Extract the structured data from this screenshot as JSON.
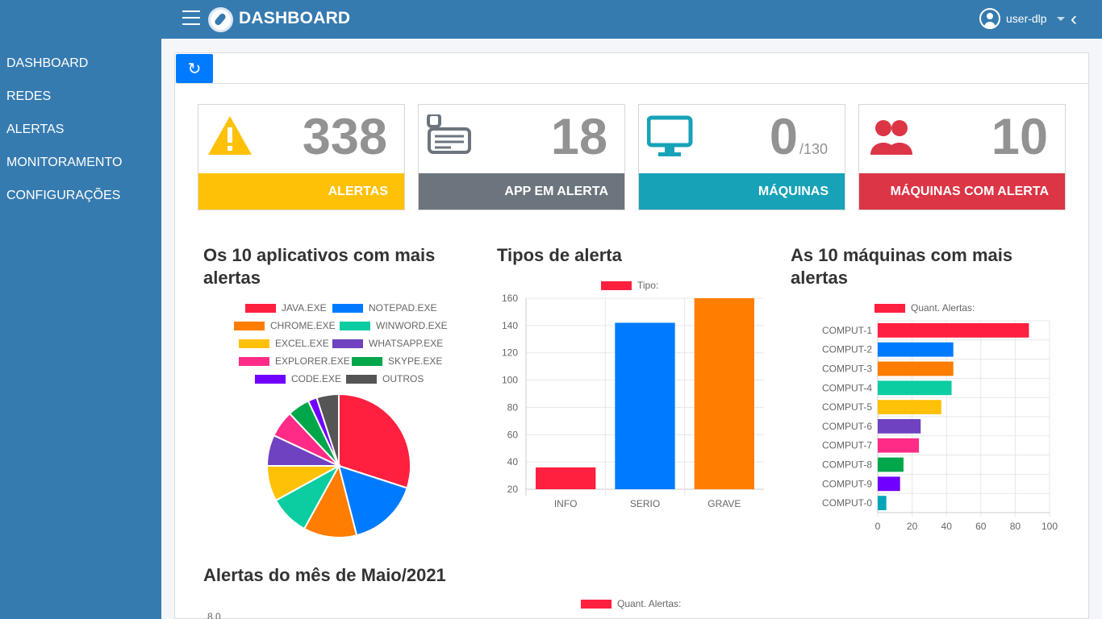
{
  "header": {
    "title": "DASHBOARD",
    "user": "user-dlp"
  },
  "sidebar": {
    "items": [
      "DASHBOARD",
      "REDES",
      "ALERTAS",
      "MONITORAMENTO",
      "CONFIGURAÇÕES"
    ]
  },
  "stats": {
    "alertas": {
      "value": "338",
      "label": "ALERTAS",
      "color": "#ffc107"
    },
    "app": {
      "value": "18",
      "label": "APP EM ALERTA",
      "color": "#6c757d"
    },
    "maquinas": {
      "value": "0",
      "sub": "/130",
      "label": "MÁQUINAS",
      "color": "#17a2b8"
    },
    "maquinas_alerta": {
      "value": "10",
      "label": "MÁQUINAS COM ALERTA",
      "color": "#dc3545"
    }
  },
  "charts": {
    "pie_title": "Os 10 aplicativos com mais alertas",
    "bar_title": "Tipos de alerta",
    "hbar_title": "As 10 máquinas com mais alertas",
    "month_title": "Alertas do mês de Maio/2021",
    "month_legend": "Quant. Alertas:",
    "month_first_tick": "8.0"
  },
  "chart_data": [
    {
      "type": "pie",
      "title": "Os 10 aplicativos com mais alertas",
      "labels": [
        "JAVA.EXE",
        "NOTEPAD.EXE",
        "CHROME.EXE",
        "WINWORD.EXE",
        "EXCEL.EXE",
        "WHATSAPP.EXE",
        "EXPLORER.EXE",
        "SKYPE.EXE",
        "CODE.EXE",
        "OUTROS"
      ],
      "values": [
        30,
        16,
        12,
        9,
        8,
        7,
        6,
        5,
        2,
        5
      ],
      "colors": [
        "#ff1f3f",
        "#007bff",
        "#ff7d00",
        "#0ccda1",
        "#ffc107",
        "#6f42c1",
        "#ff2b87",
        "#00a64a",
        "#7000ff",
        "#555555"
      ]
    },
    {
      "type": "bar",
      "title": "Tipos de alerta",
      "legend": "Tipo:",
      "categories": [
        "INFO",
        "SERIO",
        "GRAVE"
      ],
      "values": [
        36,
        142,
        160
      ],
      "ylim": [
        20,
        160
      ],
      "ticks": [
        20,
        40,
        60,
        80,
        100,
        120,
        140,
        160
      ],
      "colors": [
        "#ff1f3f",
        "#007bff",
        "#ff7d00"
      ]
    },
    {
      "type": "bar",
      "orientation": "horizontal",
      "title": "As 10 máquinas com mais alertas",
      "legend": "Quant. Alertas:",
      "categories": [
        "COMPUT-1",
        "COMPUT-2",
        "COMPUT-3",
        "COMPUT-4",
        "COMPUT-5",
        "COMPUT-6",
        "COMPUT-7",
        "COMPUT-8",
        "COMPUT-9",
        "COMPUT-0"
      ],
      "values": [
        88,
        44,
        44,
        43,
        37,
        25,
        24,
        15,
        13,
        5
      ],
      "xlim": [
        0,
        100
      ],
      "ticks": [
        0,
        20,
        40,
        60,
        80,
        100
      ],
      "colors": [
        "#ff1f3f",
        "#007bff",
        "#ff7d00",
        "#0ccda1",
        "#ffc107",
        "#6f42c1",
        "#ff2b87",
        "#00a64a",
        "#7000ff",
        "#00a6b8"
      ]
    }
  ]
}
